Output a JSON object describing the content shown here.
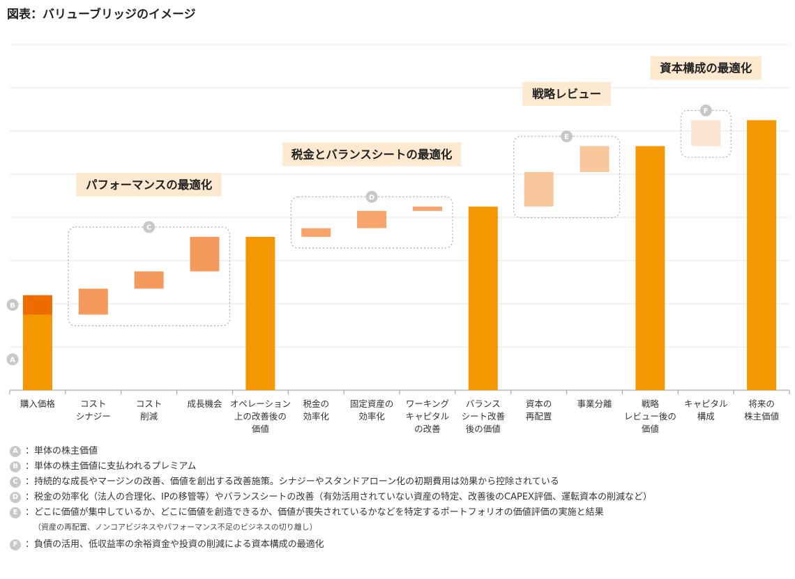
{
  "title": "図表：バリューブリッジのイメージ",
  "colors": {
    "base": "#f39800",
    "premium": "#ec6c00",
    "performance": "#f39a5c",
    "tax_balance": "#f6a46c",
    "capital_allocation": "#f9c79c",
    "capital_structure": "#fce3cf",
    "group_label_bg": "#fde9d0",
    "grid": "#e6e6e6",
    "axis": "#999999",
    "badge": "#c8c8c8"
  },
  "chart_data": {
    "type": "bar",
    "subtype": "waterfall",
    "title": "",
    "xlabel": "",
    "ylabel": "",
    "ylim": [
      0,
      8.5
    ],
    "grid": true,
    "categories": [
      "購入価格",
      "コスト\nシナジー",
      "コスト\n削減",
      "成長機会",
      "オペレーション\n上の改善後の\n価値",
      "税金の\n効率化",
      "固定資産の\n効率化",
      "ワーキング\nキャピタル\nの改善",
      "バランス\nシート改善\n後の価値",
      "資本の\n再配置",
      "事業分離",
      "戦略\nレビュー後の\n価値",
      "キャピタル\n構成",
      "将来の\n株主価値"
    ],
    "bars": [
      {
        "category": "購入価格",
        "kind": "total",
        "value": 1.75,
        "marker": "A"
      },
      {
        "category": "購入価格",
        "kind": "premium",
        "start": 1.75,
        "end": 2.2,
        "marker": "B"
      },
      {
        "category": "コスト\nシナジー",
        "kind": "increment",
        "start": 1.75,
        "end": 2.35
      },
      {
        "category": "コスト\n削減",
        "kind": "increment",
        "start": 2.35,
        "end": 2.75
      },
      {
        "category": "成長機会",
        "kind": "increment",
        "start": 2.75,
        "end": 3.55
      },
      {
        "category": "オペレーション\n上の改善後の\n価値",
        "kind": "total",
        "value": 3.55
      },
      {
        "category": "税金の\n効率化",
        "kind": "increment",
        "start": 3.55,
        "end": 3.75
      },
      {
        "category": "固定資産の\n効率化",
        "kind": "increment",
        "start": 3.75,
        "end": 4.15
      },
      {
        "category": "ワーキング\nキャピタル\nの改善",
        "kind": "increment",
        "start": 4.15,
        "end": 4.25
      },
      {
        "category": "バランス\nシート改善\n後の価値",
        "kind": "total",
        "value": 4.25
      },
      {
        "category": "資本の\n再配置",
        "kind": "increment",
        "start": 4.25,
        "end": 5.05
      },
      {
        "category": "事業分離",
        "kind": "increment",
        "start": 5.05,
        "end": 5.65
      },
      {
        "category": "戦略\nレビュー後の\n価値",
        "kind": "total",
        "value": 5.65
      },
      {
        "category": "キャピタル\n構成",
        "kind": "increment",
        "start": 5.65,
        "end": 6.25
      },
      {
        "category": "将来の\n株主価値",
        "kind": "total",
        "value": 6.25
      }
    ],
    "groups": [
      {
        "letter": "C",
        "label": "パフォーマンスの最適化",
        "from": 1,
        "to": 3
      },
      {
        "letter": "D",
        "label": "税金とバランスシートの最適化",
        "from": 5,
        "to": 7
      },
      {
        "letter": "E",
        "label": "戦略レビュー",
        "from": 9,
        "to": 10
      },
      {
        "letter": "F",
        "label": "資本構成の最適化",
        "from": 12,
        "to": 12
      }
    ]
  },
  "legend": [
    {
      "letter": "A",
      "text": "：単体の株主価値"
    },
    {
      "letter": "B",
      "text": "：単体の株主価値に支払われるプレミアム"
    },
    {
      "letter": "C",
      "text": "：持続的な成長やマージンの改善、価値を創出する改善施策。シナジーやスタンドアローン化の初期費用は効果から控除されている"
    },
    {
      "letter": "D",
      "text": "：税金の効率化（法人の合理化、IPの移管等）やバランスシートの改善（有効活用されていない資産の特定、改善後のCAPEX評価、運転資本の削減など）"
    },
    {
      "letter": "E",
      "text": "：どこに価値が集中しているか、どこに価値を創造できるか、価値が喪失されているかなどを特定するポートフォリオの価値評価の実施と結果",
      "sub": "（資産の再配置、ノンコアビジネスやパフォーマンス不足のビジネスの切り離し）"
    },
    {
      "letter": "F",
      "text": "：負債の活用、低収益率の余裕資金や投資の削減による資本構成の最適化"
    }
  ]
}
